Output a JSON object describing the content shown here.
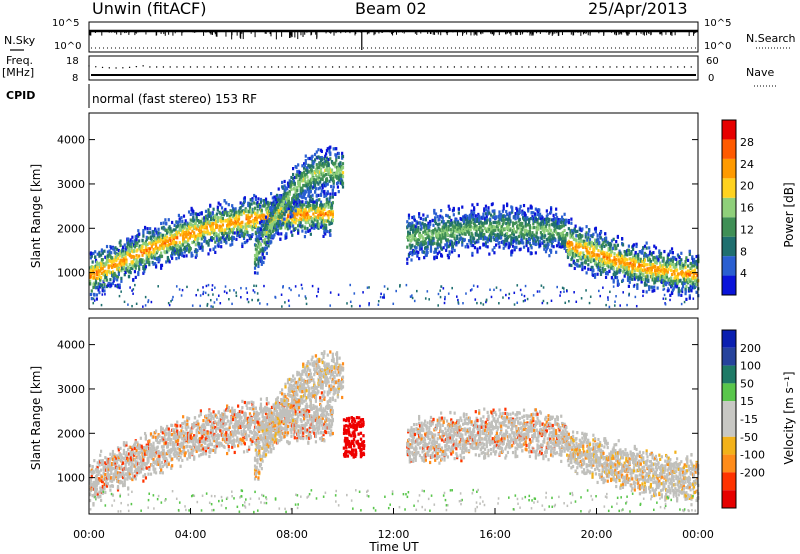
{
  "header": {
    "station": "Unwin (fitACF)",
    "beam": "Beam 02",
    "date": "25/Apr/2013"
  },
  "colors": {
    "background": "#ffffff",
    "power_scale": [
      "#0a14d9",
      "#2a5fd1",
      "#1f6f6f",
      "#3f8f55",
      "#8fcf7a",
      "#ffd21f",
      "#ff9a00",
      "#ff5a00",
      "#e60000"
    ],
    "velocity_scale": [
      "#0a1fb0",
      "#26439c",
      "#1e7a66",
      "#59c64b",
      "#c8c8c4",
      "#c8c8c4",
      "#f3b21a",
      "#ff8c1a",
      "#ff3300",
      "#e60000"
    ],
    "ground_scatter": "#c0c0bc"
  },
  "chart_data": [
    {
      "panel": "scan-parameters",
      "type": "line",
      "series_labels": {
        "left": {
          "nsky": "N.Sky",
          "freq": "Freq.",
          "freq_unit": "[MHz]",
          "cpid": "CPID"
        },
        "right": {
          "nsearch": "N.Search",
          "nave": "Nave"
        }
      },
      "nsky_ticks": [
        "10^5",
        "10^0"
      ],
      "nsearch_ticks": [
        "10^5",
        "10^0"
      ],
      "freq_ticks": [
        "18",
        "8"
      ],
      "nave_ticks": [
        "60",
        "0"
      ],
      "freq_mhz_value": 9,
      "cpid_text": "normal (fast stereo) 153 RF"
    },
    {
      "panel": "power",
      "type": "heatmap",
      "ylabel": "Slant Range [km]",
      "y_ticks": [
        1000,
        2000,
        3000,
        4000
      ],
      "ylim": [
        180,
        4600
      ],
      "xlim": [
        0,
        24
      ],
      "colorbar": {
        "label": "Power [dB]",
        "ticks": [
          4,
          8,
          12,
          16,
          20,
          24,
          28
        ],
        "range": [
          0,
          32
        ]
      },
      "scatter_regions": [
        {
          "start_hr": 0.0,
          "end_hr": 9.6,
          "range_start_km": 950,
          "range_end_km": 1900,
          "range_at_end_km": 2300,
          "peak_db": 26
        },
        {
          "start_hr": 6.5,
          "end_hr": 10.0,
          "range_start_km": 1400,
          "range_end_km": 3000,
          "range_at_end_km": 3200,
          "peak_db": 18
        },
        {
          "start_hr": 12.5,
          "end_hr": 18.8,
          "range_start_km": 1800,
          "range_end_km": 2200,
          "range_at_end_km": 1900,
          "peak_db": 16
        },
        {
          "start_hr": 18.8,
          "end_hr": 24.0,
          "range_start_km": 1700,
          "range_end_km": 1400,
          "range_at_end_km": 1000,
          "peak_db": 26
        }
      ]
    },
    {
      "panel": "velocity",
      "type": "heatmap",
      "ylabel": "Slant Range [km]",
      "y_ticks": [
        1000,
        2000,
        3000,
        4000
      ],
      "ylim": [
        180,
        4600
      ],
      "xlim": [
        0,
        24
      ],
      "x_ticks": [
        "00:00",
        "04:00",
        "08:00",
        "12:00",
        "16:00",
        "20:00",
        "00:00"
      ],
      "xlabel": "Time UT",
      "colorbar": {
        "label": "Velocity [m s⁻¹]",
        "ticks": [
          "200",
          "100",
          "50",
          "15",
          "-15",
          "-50",
          "-100",
          "-200"
        ]
      },
      "highlight": {
        "start_hr": 10.0,
        "end_hr": 10.8,
        "range_start_km": 1500,
        "range_end_km": 2400,
        "velocity_ms": -220
      }
    }
  ]
}
